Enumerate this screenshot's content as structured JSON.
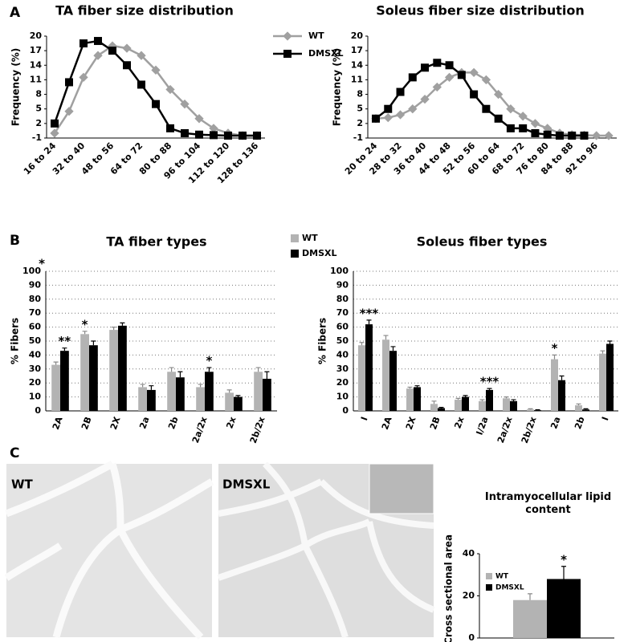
{
  "panels": [
    "A",
    "B",
    "C"
  ],
  "images": [
    {
      "label": "WT"
    },
    {
      "label": "DMSXL"
    }
  ],
  "chart_data": [
    {
      "type": "line",
      "title": "TA fiber size distribution",
      "y_label": "Frequency (%)",
      "categories": [
        "16 to 24",
        null,
        "32 to 40",
        null,
        "48 to 56",
        null,
        "64 to 72",
        null,
        "80 to 88",
        null,
        "96 to 104",
        null,
        "112 to 120",
        null,
        "128 to 136"
      ],
      "series": [
        {
          "name": "WT",
          "color": "#a0a0a0",
          "marker": "diamond",
          "values": [
            0,
            4.5,
            11.5,
            16,
            18,
            17.5,
            16,
            13,
            9,
            6,
            3,
            1,
            0,
            -0.5,
            -0.5
          ]
        },
        {
          "name": "DMSXL",
          "color": "#000000",
          "marker": "square",
          "values": [
            2,
            10.5,
            18.5,
            19,
            17,
            14,
            10,
            6,
            1,
            0,
            -0.3,
            -0.4,
            -0.5,
            -0.5,
            -0.5
          ]
        }
      ],
      "ylim": [
        -1,
        20
      ],
      "yticks": [
        -1,
        2,
        5,
        8,
        11,
        14,
        17,
        20
      ],
      "grid": false,
      "legend": true
    },
    {
      "type": "line",
      "title": "Soleus fiber size distribution",
      "y_label": "Frequency (%)",
      "categories": [
        "20 to 24",
        null,
        "28 to 32",
        null,
        "36 to 40",
        null,
        "44 to 48",
        null,
        "52 to 56",
        null,
        "60 to 64",
        null,
        "68 to 72",
        null,
        "76 to 80",
        null,
        "84 to 88",
        null,
        "92 to 96",
        null
      ],
      "series": [
        {
          "color": "#a0a0a0",
          "marker": "diamond",
          "values": [
            3,
            3.2,
            3.8,
            5,
            7,
            9.5,
            11.5,
            12.5,
            12.5,
            11,
            8,
            5,
            3.5,
            2,
            1,
            0,
            -0.3,
            -0.4,
            -0.5,
            -0.5
          ]
        },
        {
          "color": "#000000",
          "marker": "square",
          "values": [
            3,
            5,
            8.5,
            11.5,
            13.5,
            14.5,
            14,
            12,
            8,
            5,
            3,
            1,
            1,
            0,
            -0.3,
            -0.5,
            -0.5,
            -0.5,
            null,
            null
          ]
        }
      ],
      "ylim": [
        -1,
        20
      ],
      "yticks": [
        -1,
        2,
        5,
        8,
        11,
        14,
        17,
        20
      ],
      "grid": false,
      "legend": false
    },
    {
      "type": "bar",
      "title": "TA fiber types",
      "y_label": "% Fibers",
      "corner_mark": "*",
      "categories": [
        "2A",
        "2B",
        "2X",
        "2a",
        "2b",
        "2a/2x",
        "2x",
        "2b/2x"
      ],
      "series": [
        {
          "name": "WT",
          "color": "#b3b3b3",
          "values": [
            33,
            55,
            58,
            17,
            28,
            17,
            13,
            28
          ],
          "errors": [
            2,
            2,
            2,
            2,
            3,
            2,
            2,
            3
          ]
        },
        {
          "name": "DMSXL",
          "color": "#000000",
          "values": [
            43,
            47,
            61,
            15,
            24,
            28,
            10,
            23
          ],
          "errors": [
            2,
            3,
            2,
            3,
            4,
            3,
            1,
            5
          ]
        }
      ],
      "annotations": [
        "**",
        "*",
        null,
        null,
        null,
        "*",
        null,
        null
      ],
      "ylim": [
        0,
        100
      ],
      "yticks": [
        0,
        10,
        20,
        30,
        40,
        50,
        60,
        70,
        80,
        90,
        100
      ],
      "grid": true,
      "legend": true
    },
    {
      "type": "bar",
      "title": "Soleus fiber types",
      "y_label": "% Fibers",
      "categories": [
        "I",
        "2A",
        "2X",
        "2B",
        "2x",
        "I/2a",
        "2a/2x",
        "2b/2x",
        "2a",
        "2b",
        "I"
      ],
      "series": [
        {
          "color": "#b3b3b3",
          "values": [
            47,
            51,
            16,
            5,
            8,
            7,
            9,
            1,
            37,
            4,
            41
          ],
          "errors": [
            2,
            3,
            1,
            2,
            1,
            1,
            1,
            0.5,
            3,
            1,
            2
          ]
        },
        {
          "color": "#000000",
          "values": [
            62,
            43,
            17,
            2,
            10,
            15,
            7,
            0.5,
            22,
            1,
            48
          ],
          "errors": [
            3,
            3,
            1,
            0.5,
            1,
            1,
            1,
            0.3,
            3,
            0.5,
            2
          ]
        }
      ],
      "annotations": [
        "***",
        null,
        null,
        null,
        null,
        "***",
        null,
        null,
        "*",
        null,
        null
      ],
      "ylim": [
        0,
        100
      ],
      "yticks": [
        0,
        10,
        20,
        30,
        40,
        50,
        60,
        70,
        80,
        90,
        100
      ],
      "grid": true,
      "legend": false
    },
    {
      "type": "bar",
      "title": "Intramyocellular lipid content",
      "y_label": "% Cross sectional area",
      "categories": [
        null
      ],
      "series": [
        {
          "name": "WT",
          "color": "#b3b3b3",
          "values": [
            18
          ],
          "errors": [
            3
          ]
        },
        {
          "name": "DMSXL",
          "color": "#000000",
          "values": [
            28
          ],
          "errors": [
            6
          ]
        }
      ],
      "annotations": [
        "*"
      ],
      "ylim": [
        0,
        40
      ],
      "yticks": [
        0,
        20,
        40
      ],
      "grid": false,
      "legend": true
    }
  ]
}
